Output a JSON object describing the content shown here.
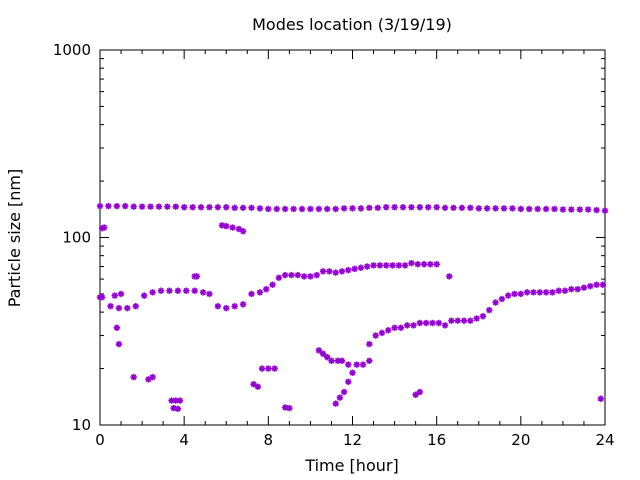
{
  "chart_data": {
    "type": "scatter",
    "title": "Modes location (3/19/19)",
    "xlabel": "Time [hour]",
    "ylabel": "Particle size [nm]",
    "xlim": [
      0,
      24
    ],
    "ylim": [
      10,
      1000
    ],
    "yscale": "log",
    "grid": false,
    "legend": "none",
    "x_ticks": [
      "0",
      "4",
      "8",
      "12",
      "16",
      "20",
      "24"
    ],
    "y_ticks": [
      "10",
      "100",
      "1000"
    ],
    "marker_color": "#9400d3",
    "series": [
      {
        "x": [
          0.0,
          0.4,
          0.8,
          1.2,
          1.6,
          2.0,
          2.4,
          2.8,
          3.2,
          3.6,
          4.0,
          4.4,
          4.8,
          5.2,
          5.6,
          6.0,
          6.4,
          6.8,
          7.2,
          7.6,
          8.0,
          8.4,
          8.8,
          9.2,
          9.6,
          10.0,
          10.4,
          10.8,
          11.2,
          11.6,
          12.0,
          12.4,
          12.8,
          13.2,
          13.6,
          14.0,
          14.4,
          14.8,
          15.2,
          15.6,
          16.0,
          16.4,
          16.8,
          17.2,
          17.6,
          18.0,
          18.4,
          18.8,
          19.2,
          19.6,
          20.0,
          20.4,
          20.8,
          21.2,
          21.6,
          22.0,
          22.4,
          22.8,
          23.2,
          23.6,
          24.0
        ],
        "y": [
          147,
          147,
          147,
          147,
          146,
          146,
          146,
          146,
          146,
          146,
          145,
          145,
          145,
          145,
          145,
          145,
          144,
          144,
          144,
          143,
          142,
          142,
          142,
          142,
          142,
          142,
          142,
          142,
          142,
          143,
          143,
          143,
          144,
          144,
          145,
          145,
          145,
          145,
          145,
          145,
          145,
          144,
          144,
          144,
          144,
          143,
          143,
          143,
          143,
          143,
          142,
          142,
          142,
          142,
          142,
          141,
          141,
          141,
          141,
          140,
          139
        ]
      },
      {
        "x": [
          0.0,
          0.1,
          0.5,
          0.9,
          1.3,
          1.7,
          2.1,
          2.5,
          2.9,
          3.3,
          3.7,
          4.1,
          4.5,
          4.9,
          5.2,
          5.6,
          6.0,
          6.4,
          6.8,
          7.2,
          7.6,
          7.9,
          8.2,
          8.5,
          8.8,
          9.1,
          9.4,
          9.7,
          10.0,
          10.3,
          10.6,
          10.9,
          11.2,
          11.5,
          11.8,
          12.1,
          12.4,
          12.7,
          13.0,
          13.3,
          13.6,
          13.9,
          14.2,
          14.5,
          14.8,
          15.1,
          15.4,
          15.7,
          16.0
        ],
        "y": [
          48,
          48,
          43,
          42,
          42,
          43,
          49,
          51,
          52,
          52,
          52,
          52,
          52,
          51,
          50,
          43,
          42,
          43,
          44,
          50,
          51,
          53,
          56,
          61,
          63,
          63,
          63,
          62,
          62,
          63,
          66,
          66,
          65,
          66,
          67,
          68,
          69,
          70,
          71,
          71,
          71,
          71,
          71,
          71,
          73,
          72,
          72,
          72,
          72
        ]
      },
      {
        "x": [
          12.8,
          13.1,
          13.4,
          13.7,
          14.0,
          14.3,
          14.6,
          14.9,
          15.2,
          15.5,
          15.8,
          16.1,
          16.4,
          16.7,
          17.0,
          17.3,
          17.6,
          17.9,
          18.2,
          18.5,
          18.8,
          19.1,
          19.4,
          19.7,
          20.0,
          20.3,
          20.6,
          20.9,
          21.2,
          21.5,
          21.8,
          22.1,
          22.4,
          22.7,
          23.0,
          23.3,
          23.6,
          23.9
        ],
        "y": [
          27,
          30,
          31,
          32,
          33,
          33,
          34,
          34,
          35,
          35,
          35,
          35,
          34,
          36,
          36,
          36,
          36,
          37,
          38,
          41,
          45,
          47,
          49,
          50,
          50,
          51,
          51,
          51,
          51,
          51,
          52,
          52,
          53,
          53,
          54,
          55,
          56,
          56
        ]
      },
      {
        "x": [
          10.4,
          10.6,
          10.8,
          11.0,
          11.3,
          11.5,
          11.8
        ],
        "y": [
          25,
          24,
          23,
          22,
          22,
          22,
          21
        ]
      },
      {
        "x": [
          11.8,
          12.0,
          12.2,
          12.5,
          12.8
        ],
        "y": [
          17,
          19,
          21,
          21,
          22
        ]
      },
      {
        "x": [
          11.2,
          11.4,
          11.6
        ],
        "y": [
          13,
          14,
          15
        ]
      },
      {
        "x": [
          0.1,
          0.2,
          0.7,
          0.8,
          0.9,
          1.0,
          1.6,
          2.3,
          2.5,
          3.4,
          3.6,
          3.8,
          3.5,
          3.7,
          4.5,
          4.6,
          5.8,
          6.0,
          6.3,
          6.6,
          6.8,
          7.3,
          7.5,
          7.7,
          8.0,
          8.3,
          8.8,
          9.0,
          15.0,
          15.2,
          16.6,
          23.8
        ],
        "y": [
          112,
          113,
          49,
          33,
          27,
          50,
          18,
          17.5,
          18,
          13.5,
          13.5,
          13.5,
          12.3,
          12.2,
          62,
          62,
          116,
          115,
          113,
          111,
          108,
          16.5,
          16,
          20,
          20,
          20,
          12.4,
          12.3,
          14.5,
          15,
          62,
          13.8
        ]
      }
    ]
  }
}
